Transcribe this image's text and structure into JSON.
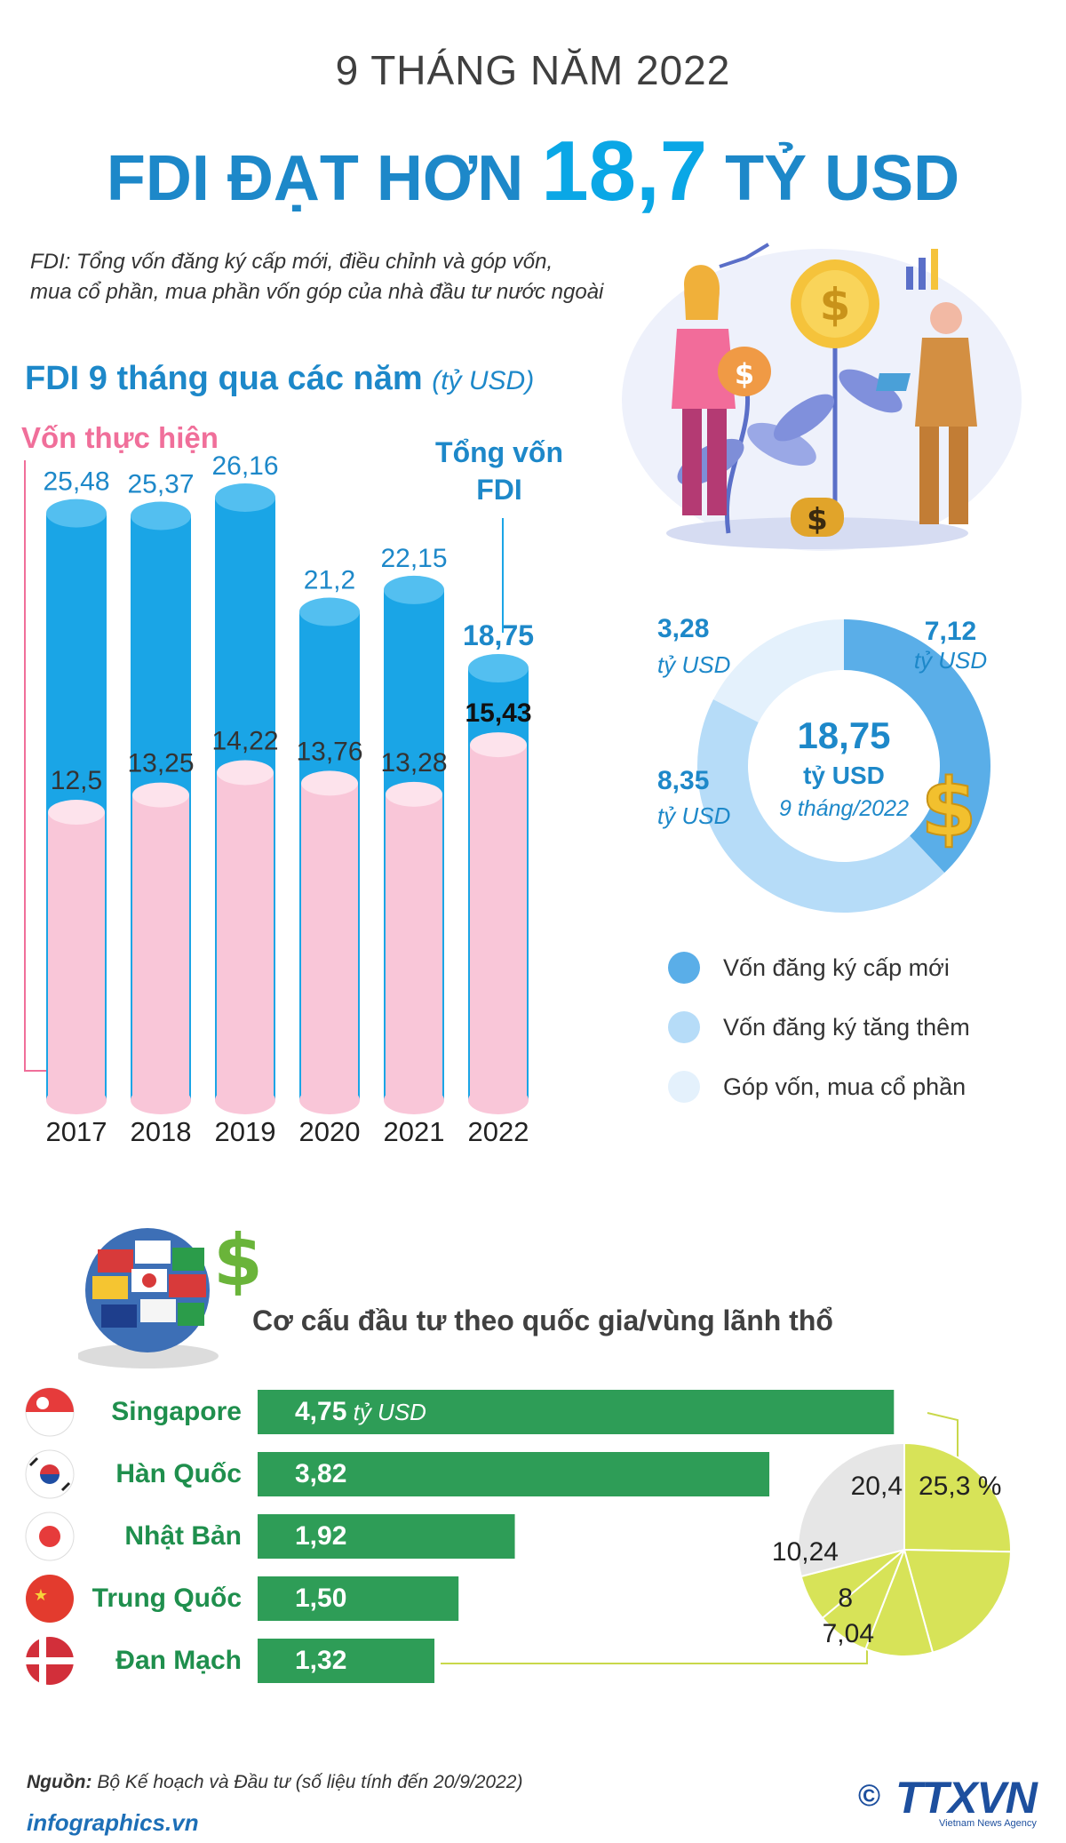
{
  "header": {
    "subtitle": "9 THÁNG NĂM 2022",
    "title_prefix": "FDI ĐẠT HƠN",
    "title_highlight": "18,7",
    "title_suffix": "TỶ USD"
  },
  "definition": {
    "line1": "FDI: Tổng vốn đăng ký cấp mới, điều chỉnh và góp vốn,",
    "line2": "mua cổ phần, mua phần vốn góp của nhà đầu tư nước ngoài"
  },
  "colors": {
    "title_blue": "#1d88c9",
    "bar_blue": "#1aa5e6",
    "bar_pink": "#f9c6d8",
    "realized_pink": "#f06f9a",
    "country_green": "#2e9d57",
    "pie_yellow": "#d7e358",
    "donut_dark": "#5aaee8",
    "donut_mid": "#b6dcf8",
    "donut_light": "#e4f1fc"
  },
  "chart_data": [
    {
      "type": "bar",
      "title": "FDI 9 tháng qua các năm",
      "unit": "(tỷ USD)",
      "categories": [
        "2017",
        "2018",
        "2019",
        "2020",
        "2021",
        "2022"
      ],
      "series": [
        {
          "name": "Tổng vốn FDI",
          "values": [
            25.48,
            25.37,
            26.16,
            21.2,
            22.15,
            18.75
          ],
          "labels": [
            "25,48",
            "25,37",
            "26,16",
            "21,2",
            "22,15",
            "18,75"
          ]
        },
        {
          "name": "Vốn thực hiện",
          "values": [
            12.5,
            13.25,
            14.22,
            13.76,
            13.28,
            15.43
          ],
          "labels": [
            "12,5",
            "13,25",
            "14,22",
            "13,76",
            "13,28",
            "15,43"
          ]
        }
      ],
      "series_labels": {
        "realized": "Vốn thực hiện",
        "total_line1": "Tổng vốn",
        "total_line2": "FDI"
      },
      "ylim": [
        0,
        28
      ]
    },
    {
      "type": "pie",
      "center_value": "18,75",
      "center_unit": "tỷ USD",
      "center_note": "9 tháng/2022",
      "slices": [
        {
          "name": "Vốn đăng ký cấp mới",
          "value": 7.12,
          "label": "7,12",
          "unit": "tỷ USD",
          "color": "#5aaee8"
        },
        {
          "name": "Vốn đăng ký tăng thêm",
          "value": 8.35,
          "label": "8,35",
          "unit": "tỷ USD",
          "color": "#b6dcf8"
        },
        {
          "name": "Góp vốn, mua cổ phần",
          "value": 3.28,
          "label": "3,28",
          "unit": "tỷ USD",
          "color": "#e4f1fc"
        }
      ],
      "legend": [
        "Vốn đăng ký cấp mới",
        "Vốn đăng ký tăng thêm",
        "Góp vốn, mua cổ phần"
      ]
    },
    {
      "type": "bar",
      "title": "Cơ cấu đầu tư theo quốc gia/vùng lãnh thổ",
      "categories": [
        "Singapore",
        "Hàn Quốc",
        "Nhật Bản",
        "Trung Quốc",
        "Đan Mạch"
      ],
      "values": [
        4.75,
        3.82,
        1.92,
        1.5,
        1.32
      ],
      "labels": [
        "4,75",
        "3,82",
        "1,92",
        "1,50",
        "1,32"
      ],
      "first_unit": "tỷ USD",
      "xlim": [
        0,
        5
      ]
    },
    {
      "type": "pie",
      "slices": [
        {
          "value": 25.3,
          "label": "25,3 %",
          "color": "#d7e358"
        },
        {
          "value": 20.4,
          "label": "20,4",
          "color": "#d7e358"
        },
        {
          "value": 10.24,
          "label": "10,24",
          "color": "#d7e358"
        },
        {
          "value": 8,
          "label": "8",
          "color": "#d7e358"
        },
        {
          "value": 7.04,
          "label": "7,04",
          "color": "#d7e358"
        },
        {
          "value": 29.02,
          "label": "",
          "color": "#e6e6e6"
        }
      ]
    }
  ],
  "donut_legend": {
    "item1": "Vốn đăng ký cấp mới",
    "item2": "Vốn đăng ký tăng thêm",
    "item3": "Góp vốn, mua cổ phần"
  },
  "icons": [
    "investment-illustration",
    "globe-flags-icon",
    "dollar-icon",
    "flag-singapore-icon",
    "flag-korea-icon",
    "flag-japan-icon",
    "flag-china-icon",
    "flag-denmark-icon"
  ],
  "footer": {
    "source_label": "Nguồn:",
    "source_text": " Bộ Kế hoạch và Đầu tư (số liệu tính đến 20/9/2022)",
    "site": "infographics.vn",
    "copyright": "©",
    "logo": "TTXVN",
    "logo_sub": "Vietnam News Agency"
  }
}
